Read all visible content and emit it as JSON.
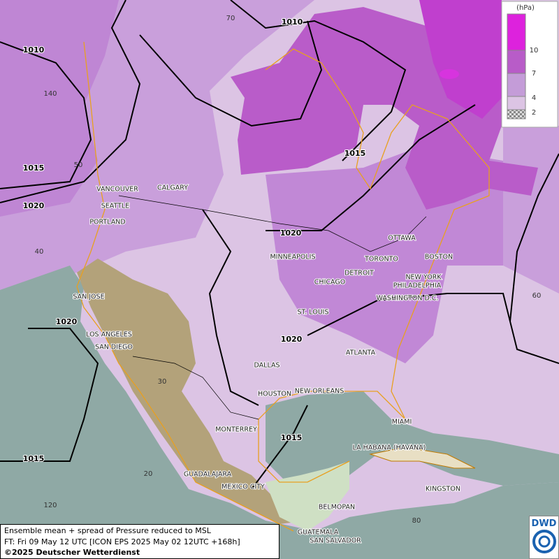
{
  "legend": {
    "unit": "(hPa)",
    "labels": [
      "10",
      "7",
      "4",
      "2"
    ]
  },
  "isobar_labels": [
    "1010",
    "1010",
    "1015",
    "1015",
    "1020",
    "1020",
    "1020",
    "1020",
    "1015",
    "1015"
  ],
  "grid_labels": [
    "70",
    "140",
    "50",
    "40",
    "30",
    "20",
    "120",
    "60",
    "80"
  ],
  "cities": [
    "VANCOUVER",
    "CALGARY",
    "SEATTLE",
    "PORTLAND",
    "MINNEAPOLIS",
    "OTTAWA",
    "TORONTO",
    "BOSTON",
    "DETROIT",
    "NEW YORK",
    "CHICAGO",
    "PHILADELPHIA",
    "SAN JOSE",
    "WASHINGTON D.C.",
    "ST. LOUIS",
    "LOS ANGELES",
    "SAN DIEGO",
    "ATLANTA",
    "DALLAS",
    "HOUSTON",
    "NEW ORLEANS",
    "MIAMI",
    "MONTERREY",
    "LA HABANA (HAVANA)",
    "GUADALAJARA",
    "MEXICO CITY",
    "KINGSTON",
    "BELMOPAN",
    "GUATEMALA",
    "SAN SALVADOR"
  ],
  "footer": {
    "line1": "Ensemble mean + spread of Pressure reduced to MSL",
    "line2": "FT: Fri 09 May 12 UTC [ICON EPS 2025 May 02 12UTC +168h]",
    "line3": "©2025 Deutscher Wetterdienst"
  },
  "logo": "DWD"
}
